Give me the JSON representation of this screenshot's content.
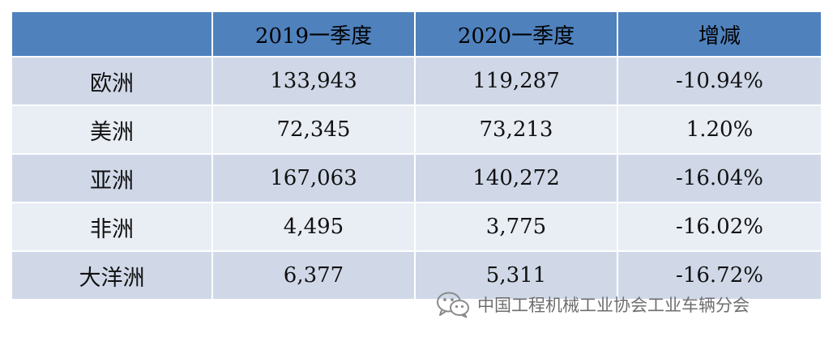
{
  "chart_data": {
    "type": "table",
    "columns": [
      "",
      "2019一季度",
      "2020一季度",
      "增减"
    ],
    "rows": [
      {
        "region": "欧洲",
        "q1_2019": "133,943",
        "q1_2020": "119,287",
        "change": "-10.94%"
      },
      {
        "region": "美洲",
        "q1_2019": "72,345",
        "q1_2020": "73,213",
        "change": "1.20%"
      },
      {
        "region": "亚洲",
        "q1_2019": "167,063",
        "q1_2020": "140,272",
        "change": "-16.04%"
      },
      {
        "region": "非洲",
        "q1_2019": "4,495",
        "q1_2020": "3,775",
        "change": "-16.02%"
      },
      {
        "region": "大洋洲",
        "q1_2019": "6,377",
        "q1_2020": "5,311",
        "change": "-16.72%"
      }
    ],
    "colors": {
      "header": "#4f81bd",
      "row_odd": "#d0d8e8",
      "row_even": "#e9edf4"
    }
  },
  "watermark": {
    "icon": "wechat-icon",
    "text": "中国工程机械工业协会工业车辆分会"
  }
}
